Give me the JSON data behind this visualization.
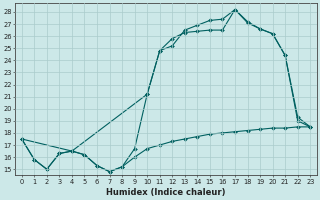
{
  "xlabel": "Humidex (Indice chaleur)",
  "xlim": [
    -0.5,
    23.5
  ],
  "ylim": [
    14.5,
    28.7
  ],
  "yticks": [
    15,
    16,
    17,
    18,
    19,
    20,
    21,
    22,
    23,
    24,
    25,
    26,
    27,
    28
  ],
  "xticks": [
    0,
    1,
    2,
    3,
    4,
    5,
    6,
    7,
    8,
    9,
    10,
    11,
    12,
    13,
    14,
    15,
    16,
    17,
    18,
    19,
    20,
    21,
    22,
    23
  ],
  "bg_color": "#cce8e8",
  "grid_color": "#aacccc",
  "line_color": "#006060",
  "line1_x": [
    0,
    1,
    2,
    3,
    4,
    5,
    6,
    7,
    8,
    9,
    10,
    11,
    12,
    13,
    14,
    15,
    16,
    17,
    18,
    19,
    20,
    21,
    22,
    23
  ],
  "line1_y": [
    17.5,
    15.8,
    15.0,
    16.3,
    16.5,
    16.2,
    15.3,
    14.8,
    15.2,
    16.7,
    21.2,
    24.8,
    25.8,
    26.3,
    26.4,
    26.5,
    26.5,
    28.2,
    27.2,
    26.6,
    26.2,
    24.4,
    19.3,
    18.5
  ],
  "line2_x": [
    0,
    4,
    10,
    11,
    12,
    13,
    14,
    15,
    16,
    17,
    18,
    19,
    20,
    21,
    22,
    23
  ],
  "line2_y": [
    17.5,
    16.5,
    21.2,
    24.8,
    25.2,
    26.5,
    26.9,
    27.3,
    27.4,
    28.2,
    27.1,
    26.6,
    26.2,
    24.4,
    19.0,
    18.5
  ],
  "line3_x": [
    0,
    1,
    2,
    3,
    4,
    5,
    6,
    7,
    8,
    9,
    10,
    11,
    12,
    13,
    14,
    15,
    16,
    17,
    18,
    19,
    20,
    21,
    22,
    23
  ],
  "line3_y": [
    17.5,
    15.8,
    15.0,
    16.3,
    16.5,
    16.2,
    15.3,
    14.8,
    15.2,
    16.0,
    16.7,
    17.0,
    17.3,
    17.5,
    17.7,
    17.9,
    18.0,
    18.1,
    18.2,
    18.3,
    18.4,
    18.4,
    18.5,
    18.5
  ]
}
